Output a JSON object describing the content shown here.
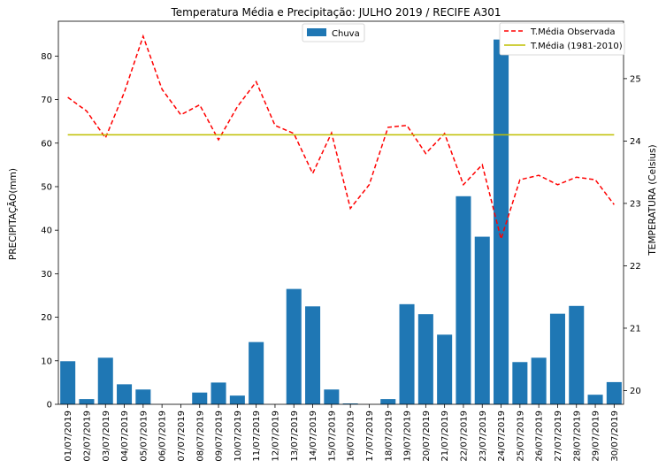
{
  "chart_data": {
    "type": "bar+line",
    "title": "Temperatura Média e Precipitação: JULHO 2019 / RECIFE A301",
    "ylabel_left": "PRECIPITAÇÃO(mm)",
    "ylabel_right": "TEMPERATURA (Celsius)",
    "categories": [
      "01/07/2019",
      "02/07/2019",
      "03/07/2019",
      "04/07/2019",
      "05/07/2019",
      "06/07/2019",
      "07/07/2019",
      "08/07/2019",
      "09/07/2019",
      "10/07/2019",
      "11/07/2019",
      "12/07/2019",
      "13/07/2019",
      "14/07/2019",
      "15/07/2019",
      "16/07/2019",
      "17/07/2019",
      "18/07/2019",
      "19/07/2019",
      "20/07/2019",
      "21/07/2019",
      "22/07/2019",
      "23/07/2019",
      "24/07/2019",
      "25/07/2019",
      "26/07/2019",
      "27/07/2019",
      "28/07/2019",
      "29/07/2019",
      "30/07/2019"
    ],
    "left_axis": {
      "ylim": [
        0,
        88
      ],
      "ticks": [
        0,
        10,
        20,
        30,
        40,
        50,
        60,
        70,
        80
      ]
    },
    "right_axis": {
      "ylim": [
        19.78,
        25.92
      ],
      "ticks": [
        20,
        21,
        22,
        23,
        24,
        25
      ]
    },
    "bars": {
      "name": "Chuva",
      "color": "#1f77b4",
      "values": [
        9.9,
        1.2,
        10.7,
        4.6,
        3.4,
        0,
        0,
        2.7,
        5.0,
        2.0,
        14.3,
        0,
        26.5,
        22.5,
        3.4,
        0.2,
        0,
        1.2,
        23.0,
        20.7,
        16.0,
        47.8,
        38.5,
        83.8,
        9.7,
        10.7,
        20.8,
        22.6,
        2.2,
        5.1
      ]
    },
    "lines": [
      {
        "name": "T.Média Observada",
        "color": "#ff0000",
        "style": "dashed",
        "values": [
          24.7,
          24.48,
          24.05,
          24.78,
          25.68,
          24.83,
          24.42,
          24.58,
          24.02,
          24.55,
          24.95,
          24.25,
          24.12,
          23.48,
          24.13,
          22.92,
          23.3,
          24.22,
          24.25,
          23.8,
          24.12,
          23.3,
          23.62,
          22.43,
          23.38,
          23.45,
          23.3,
          23.42,
          23.38,
          22.98
        ]
      },
      {
        "name": "T.Média (1981-2010)",
        "color": "#bfbf00",
        "style": "solid",
        "values": [
          24.1,
          24.1,
          24.1,
          24.1,
          24.1,
          24.1,
          24.1,
          24.1,
          24.1,
          24.1,
          24.1,
          24.1,
          24.1,
          24.1,
          24.1,
          24.1,
          24.1,
          24.1,
          24.1,
          24.1,
          24.1,
          24.1,
          24.1,
          24.1,
          24.1,
          24.1,
          24.1,
          24.1,
          24.1,
          24.1
        ]
      }
    ],
    "legend_bars_position": "top-center",
    "legend_lines_position": "top-right",
    "grid": false
  }
}
